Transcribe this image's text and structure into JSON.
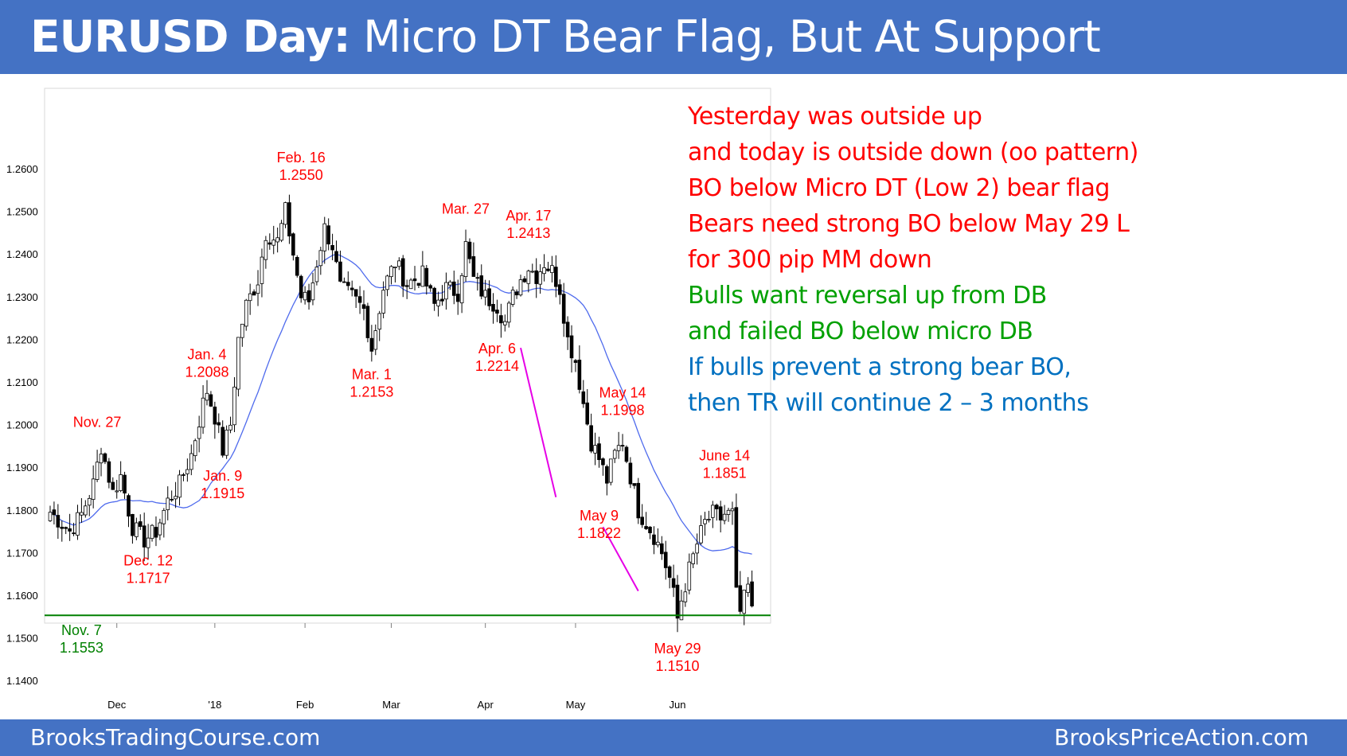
{
  "header": {
    "title_bold": "EURUSD Day:",
    "title_rest": " Micro DT Bear Flag, But At Support",
    "bg_color": "#4472c4"
  },
  "footer": {
    "left": "BrooksTradingCourse.com",
    "right": "BrooksPriceAction.com"
  },
  "notes": [
    {
      "text": "Yesterday was outside up",
      "color": "#ff0000"
    },
    {
      "text": "and today is outside down (oo pattern)",
      "color": "#ff0000"
    },
    {
      "text": "BO below Micro DT (Low 2) bear flag",
      "color": "#ff0000"
    },
    {
      "text": "Bears need strong BO below May 29 L",
      "color": "#ff0000"
    },
    {
      "text": "for 300 pip MM down",
      "color": "#ff0000"
    },
    {
      "text": "Bulls want reversal up from DB",
      "color": "#00a000"
    },
    {
      "text": "and failed BO below micro DB",
      "color": "#00a000"
    },
    {
      "text": "If bulls prevent a strong bear BO,",
      "color": "#0070c0"
    },
    {
      "text": "then TR will continue 2 – 3 months",
      "color": "#0070c0"
    }
  ],
  "chart_data": {
    "type": "candlestick",
    "title": "",
    "xlabel": "",
    "ylabel": "",
    "ylim": [
      1.14,
      1.265
    ],
    "y_ticks": [
      "1.2600",
      "1.2500",
      "1.2400",
      "1.2300",
      "1.2200",
      "1.2100",
      "1.2000",
      "1.1900",
      "1.1800",
      "1.1700",
      "1.1600",
      "1.1500",
      "1.1400"
    ],
    "x_ticks": [
      {
        "label": "Dec",
        "bar": 17
      },
      {
        "label": "'18",
        "bar": 42
      },
      {
        "label": "Feb",
        "bar": 65
      },
      {
        "label": "Mar",
        "bar": 87
      },
      {
        "label": "Apr",
        "bar": 111
      },
      {
        "label": "May",
        "bar": 134
      },
      {
        "label": "Jun",
        "bar": 160
      }
    ],
    "bar_count": 176,
    "moving_average": {
      "period": 20,
      "color": "#4f6bed"
    },
    "support_line": {
      "price": 1.1553,
      "color": "#008000"
    },
    "keypoints": [
      [
        0,
        1.1795
      ],
      [
        5,
        1.175
      ],
      [
        8,
        1.179
      ],
      [
        11,
        1.186
      ],
      [
        13,
        1.195
      ],
      [
        16,
        1.184
      ],
      [
        18,
        1.188
      ],
      [
        21,
        1.176
      ],
      [
        24,
        1.173
      ],
      [
        27,
        1.175
      ],
      [
        30,
        1.182
      ],
      [
        33,
        1.186
      ],
      [
        36,
        1.193
      ],
      [
        39,
        1.205
      ],
      [
        40,
        1.208
      ],
      [
        42,
        1.202
      ],
      [
        44,
        1.194
      ],
      [
        46,
        1.2
      ],
      [
        48,
        1.22
      ],
      [
        50,
        1.228
      ],
      [
        53,
        1.234
      ],
      [
        55,
        1.245
      ],
      [
        58,
        1.243
      ],
      [
        60,
        1.25
      ],
      [
        62,
        1.24
      ],
      [
        64,
        1.23
      ],
      [
        66,
        1.229
      ],
      [
        68,
        1.238
      ],
      [
        70,
        1.246
      ],
      [
        72,
        1.242
      ],
      [
        74,
        1.232
      ],
      [
        77,
        1.23
      ],
      [
        80,
        1.227
      ],
      [
        82,
        1.218
      ],
      [
        85,
        1.232
      ],
      [
        88,
        1.238
      ],
      [
        91,
        1.233
      ],
      [
        95,
        1.235
      ],
      [
        98,
        1.228
      ],
      [
        101,
        1.232
      ],
      [
        104,
        1.231
      ],
      [
        106,
        1.242
      ],
      [
        108,
        1.234
      ],
      [
        111,
        1.23
      ],
      [
        114,
        1.228
      ],
      [
        116,
        1.224
      ],
      [
        118,
        1.23
      ],
      [
        120,
        1.234
      ],
      [
        122,
        1.237
      ],
      [
        124,
        1.235
      ],
      [
        126,
        1.238
      ],
      [
        128,
        1.236
      ],
      [
        130,
        1.232
      ],
      [
        132,
        1.22
      ],
      [
        134,
        1.215
      ],
      [
        136,
        1.205
      ],
      [
        138,
        1.196
      ],
      [
        140,
        1.192
      ],
      [
        142,
        1.187
      ],
      [
        144,
        1.193
      ],
      [
        146,
        1.196
      ],
      [
        148,
        1.188
      ],
      [
        150,
        1.18
      ],
      [
        152,
        1.177
      ],
      [
        154,
        1.174
      ],
      [
        156,
        1.17
      ],
      [
        158,
        1.164
      ],
      [
        159,
        1.16
      ],
      [
        160,
        1.1545
      ],
      [
        161,
        1.159
      ],
      [
        163,
        1.166
      ],
      [
        165,
        1.172
      ],
      [
        167,
        1.177
      ],
      [
        169,
        1.179
      ],
      [
        171,
        1.178
      ],
      [
        172,
        1.179
      ],
      [
        174,
        1.179
      ],
      [
        175,
        1.16
      ],
      [
        176,
        1.156
      ],
      [
        178,
        1.162
      ],
      [
        179,
        1.156
      ]
    ],
    "labels": [
      {
        "date": "Nov. 7",
        "price": "1.1553",
        "color": "#008000",
        "bar": 8,
        "pos": "below"
      },
      {
        "date": "Nov. 27",
        "price": "",
        "color": "#ff0000",
        "bar": 12,
        "pos": "above",
        "at": 1.197
      },
      {
        "date": "Dec. 12",
        "price": "1.1717",
        "color": "#ff0000",
        "bar": 25,
        "pos": "below"
      },
      {
        "date": "Jan. 4",
        "price": "1.2088",
        "color": "#ff0000",
        "bar": 40,
        "pos": "above"
      },
      {
        "date": "Jan. 9",
        "price": "1.1915",
        "color": "#ff0000",
        "bar": 44,
        "pos": "below"
      },
      {
        "date": "Feb. 16",
        "price": "1.2550",
        "color": "#ff0000",
        "bar": 64,
        "pos": "above"
      },
      {
        "date": "Mar. 1",
        "price": "1.2153",
        "color": "#ff0000",
        "bar": 82,
        "pos": "below"
      },
      {
        "date": "Mar. 27",
        "price": "",
        "color": "#ff0000",
        "bar": 106,
        "pos": "above",
        "at": 1.247
      },
      {
        "date": "Apr. 17",
        "price": "1.2413",
        "color": "#ff0000",
        "bar": 122,
        "pos": "above"
      },
      {
        "date": "Apr. 6",
        "price": "1.2214",
        "color": "#ff0000",
        "bar": 114,
        "pos": "below"
      },
      {
        "date": "May 14",
        "price": "1.1998",
        "color": "#ff0000",
        "bar": 146,
        "pos": "above"
      },
      {
        "date": "May 9",
        "price": "1.1822",
        "color": "#ff0000",
        "bar": 140,
        "pos": "below"
      },
      {
        "date": "June 14",
        "price": "1.1851",
        "color": "#ff0000",
        "bar": 172,
        "pos": "above"
      },
      {
        "date": "May 29",
        "price": "1.1510",
        "color": "#ff0000",
        "bar": 160,
        "pos": "below"
      }
    ],
    "trendlines": [
      {
        "color": "#e600e6",
        "from": [
          120,
          1.218
        ],
        "to": [
          129,
          1.183
        ]
      },
      {
        "color": "#e600e6",
        "from": [
          141,
          1.176
        ],
        "to": [
          150,
          1.161
        ]
      }
    ]
  }
}
